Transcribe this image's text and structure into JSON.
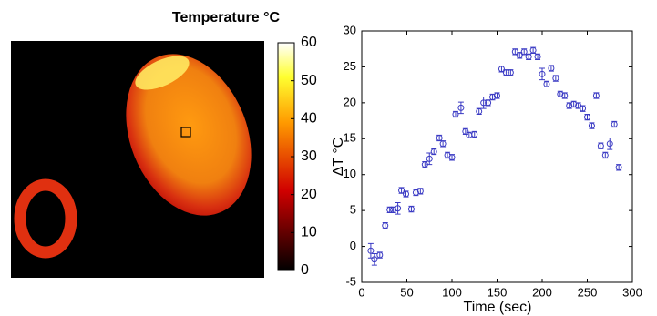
{
  "chart_data": [
    {
      "type": "heatmap",
      "title": "Temperature °C",
      "clim": [
        0,
        60
      ],
      "cticks": [
        0,
        10,
        20,
        30,
        40,
        50,
        60
      ]
    },
    {
      "type": "scatter",
      "xlabel": "Time (sec)",
      "ylabel": "ΔT °C",
      "color": "#3b3bc4",
      "xlim": [
        0,
        300
      ],
      "xticks": [
        0,
        50,
        100,
        150,
        200,
        250,
        300
      ],
      "ylim": [
        -5,
        30
      ],
      "yticks": [
        -5,
        0,
        5,
        10,
        15,
        20,
        25,
        30
      ],
      "x": [
        10,
        14,
        20,
        26,
        31,
        35,
        40,
        44,
        49,
        55,
        60,
        65,
        70,
        75,
        80,
        86,
        90,
        95,
        100,
        104,
        110,
        115,
        119,
        125,
        130,
        135,
        140,
        145,
        150,
        155,
        160,
        165,
        170,
        175,
        180,
        185,
        190,
        195,
        200,
        205,
        210,
        215,
        220,
        225,
        230,
        235,
        240,
        245,
        250,
        255,
        260,
        265,
        270,
        275,
        280,
        285
      ],
      "values": [
        -0.6,
        -1.8,
        -1.2,
        2.9,
        5.1,
        5.1,
        5.3,
        7.8,
        7.3,
        5.2,
        7.5,
        7.7,
        11.4,
        12.2,
        13.2,
        15.1,
        14.3,
        12.7,
        12.4,
        18.4,
        19.3,
        16,
        15.5,
        15.6,
        18.8,
        20,
        20,
        20.8,
        21,
        24.7,
        24.2,
        24.2,
        27.1,
        26.6,
        27.1,
        26.4,
        27.3,
        26.4,
        24,
        22.6,
        24.8,
        23.4,
        21.2,
        21,
        19.6,
        19.8,
        19.6,
        19.2,
        18,
        16.8,
        21,
        14,
        12.7,
        14.3,
        17,
        11
      ],
      "errors": [
        1,
        0.8,
        0.4,
        0.4,
        0.4,
        0.4,
        0.8,
        0.4,
        0.4,
        0.4,
        0.4,
        0.4,
        0.4,
        0.8,
        0.4,
        0.4,
        0.4,
        0.4,
        0.4,
        0.4,
        0.8,
        0.4,
        0.4,
        0.4,
        0.4,
        0.8,
        0.4,
        0.4,
        0.4,
        0.4,
        0.4,
        0.4,
        0.4,
        0.4,
        0.4,
        0.4,
        0.4,
        0.4,
        0.8,
        0.4,
        0.4,
        0.4,
        0.4,
        0.4,
        0.4,
        0.4,
        0.4,
        0.4,
        0.4,
        0.4,
        0.4,
        0.4,
        0.4,
        0.8,
        0.4,
        0.4
      ]
    }
  ]
}
